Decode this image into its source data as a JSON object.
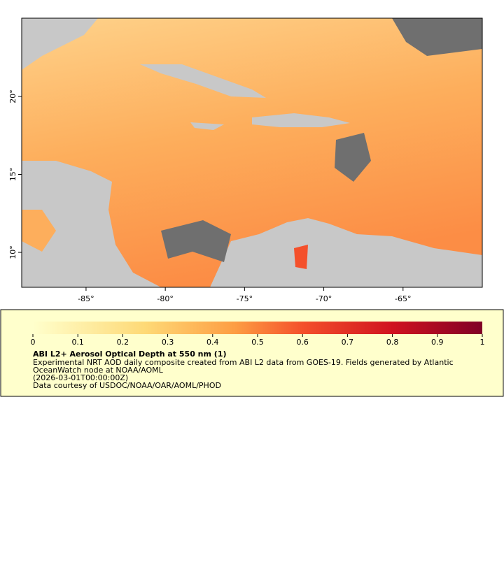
{
  "chart_data": {
    "type": "map",
    "xlim": [
      -89.06,
      -60.0
    ],
    "ylim": [
      7.76,
      25.02
    ],
    "xticks": [
      {
        "value": -85,
        "label": "-85°"
      },
      {
        "value": -80,
        "label": "-80°"
      },
      {
        "value": -75,
        "label": "-75°"
      },
      {
        "value": -70,
        "label": "-70°"
      },
      {
        "value": -65,
        "label": "-65°"
      }
    ],
    "yticks": [
      {
        "value": 10,
        "label": "10°"
      },
      {
        "value": 15,
        "label": "15°"
      },
      {
        "value": 20,
        "label": "20°"
      }
    ],
    "colorbar": {
      "clim": [
        0,
        1
      ],
      "ticks": [
        0,
        0.1,
        0.2,
        0.3,
        0.4,
        0.5,
        0.6,
        0.7,
        0.8,
        0.9,
        1
      ]
    },
    "title": "ABI L2+ Aerosol Optical Depth at 550 nm (1)",
    "description": [
      "Experimental NRT AOD daily composite created from ABI L2 data from GOES-19. Fields generated by Atlantic",
      "OceanWatch node at NOAA/AOML",
      "(2026-03-01T00:00:00Z)",
      "Data courtesy of USDOC/NOAA/OAR/AOML/PHOD"
    ]
  }
}
